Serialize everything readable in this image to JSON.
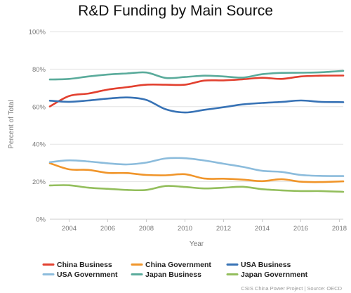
{
  "chart_data": {
    "type": "line",
    "title": "R&D Funding by Main Source",
    "xlabel": "Year",
    "ylabel": "Percent of Total",
    "xlim": [
      2003,
      2018.2
    ],
    "ylim": [
      0,
      100
    ],
    "x_ticks": [
      2004,
      2006,
      2008,
      2010,
      2012,
      2014,
      2016,
      2018
    ],
    "x_tick_labels": [
      "2004",
      "2006",
      "2008",
      "2010",
      "2012",
      "2014",
      "2016",
      "2018"
    ],
    "y_ticks": [
      0,
      20,
      40,
      60,
      80,
      100
    ],
    "y_tick_labels": [
      "0%",
      "20%",
      "40%",
      "60%",
      "80%",
      "100%"
    ],
    "grid": "horizontal",
    "legend_position": "bottom",
    "source": "CSIS China Power Project | Source: OECD",
    "x": [
      2003,
      2004,
      2005,
      2006,
      2007,
      2008,
      2009,
      2010,
      2011,
      2012,
      2013,
      2014,
      2015,
      2016,
      2017,
      2018.2
    ],
    "series": [
      {
        "name": "China Business",
        "color": "#e2402f",
        "values": [
          60.1,
          65.7,
          67.0,
          69.1,
          70.4,
          71.7,
          71.7,
          71.7,
          73.9,
          74.0,
          74.6,
          75.4,
          74.8,
          76.1,
          76.5,
          76.6
        ]
      },
      {
        "name": "China Government",
        "color": "#f0952a",
        "values": [
          29.9,
          26.6,
          26.3,
          24.7,
          24.6,
          23.6,
          23.4,
          24.0,
          21.7,
          21.6,
          21.1,
          20.3,
          21.3,
          20.0,
          19.8,
          20.2
        ]
      },
      {
        "name": "USA Business",
        "color": "#3772b5",
        "values": [
          63.2,
          62.6,
          63.3,
          64.3,
          64.9,
          63.6,
          58.6,
          56.9,
          58.3,
          59.7,
          61.2,
          62.0,
          62.5,
          63.3,
          62.6,
          62.4
        ]
      },
      {
        "name": "USA Government",
        "color": "#8cbcdc",
        "values": [
          30.4,
          31.4,
          30.8,
          29.8,
          29.2,
          30.2,
          32.4,
          32.5,
          31.3,
          29.6,
          27.9,
          25.8,
          25.2,
          23.6,
          23.1,
          23.0
        ]
      },
      {
        "name": "Japan Business",
        "color": "#5aab9b",
        "values": [
          74.5,
          74.8,
          76.1,
          77.1,
          77.7,
          78.2,
          75.3,
          75.8,
          76.5,
          76.1,
          75.5,
          77.3,
          78.0,
          78.1,
          78.3,
          79.1
        ]
      },
      {
        "name": "Japan Government",
        "color": "#93be5c",
        "values": [
          18.0,
          18.1,
          16.8,
          16.2,
          15.6,
          15.6,
          17.7,
          17.2,
          16.4,
          16.8,
          17.3,
          16.0,
          15.4,
          15.0,
          15.0,
          14.6
        ]
      }
    ]
  }
}
